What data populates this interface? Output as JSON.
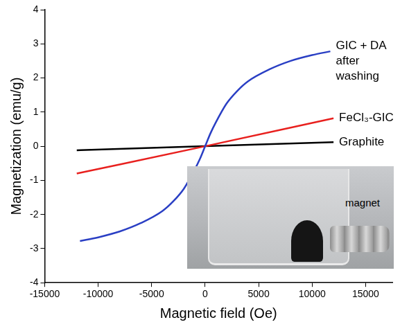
{
  "chart_data": {
    "type": "line",
    "x_label": "Magnetic field (Oe)",
    "y_label": "Magnetization (emu/g)",
    "xlim": [
      -15000,
      17500
    ],
    "xticks": [
      -15000,
      -10000,
      -5000,
      0,
      5000,
      10000,
      15000
    ],
    "ylim": [
      -4,
      4
    ],
    "yticks": [
      -4,
      -3,
      -2,
      -1,
      0,
      1,
      2,
      3,
      4
    ],
    "grid": false,
    "series": [
      {
        "name": "GIC + DA after washing",
        "color": "#2a3fc4",
        "x": [
          -11700,
          -10000,
          -8000,
          -6000,
          -4000,
          -3000,
          -2000,
          -1000,
          -500,
          0,
          500,
          1000,
          2000,
          3000,
          4000,
          6000,
          8000,
          10000,
          11700
        ],
        "values": [
          -2.78,
          -2.67,
          -2.5,
          -2.25,
          -1.9,
          -1.62,
          -1.25,
          -0.7,
          -0.38,
          0,
          0.38,
          0.7,
          1.25,
          1.62,
          1.9,
          2.25,
          2.5,
          2.67,
          2.78
        ]
      },
      {
        "name": "FeCl₃-GIC",
        "color": "#e8201e",
        "x": [
          -12000,
          0,
          12000
        ],
        "values": [
          -0.8,
          0,
          0.82
        ]
      },
      {
        "name": "Graphite",
        "color": "#000000",
        "x": [
          -12000,
          0,
          12000
        ],
        "values": [
          -0.12,
          0,
          0.12
        ]
      }
    ],
    "inset": {
      "label": "magnet"
    }
  }
}
